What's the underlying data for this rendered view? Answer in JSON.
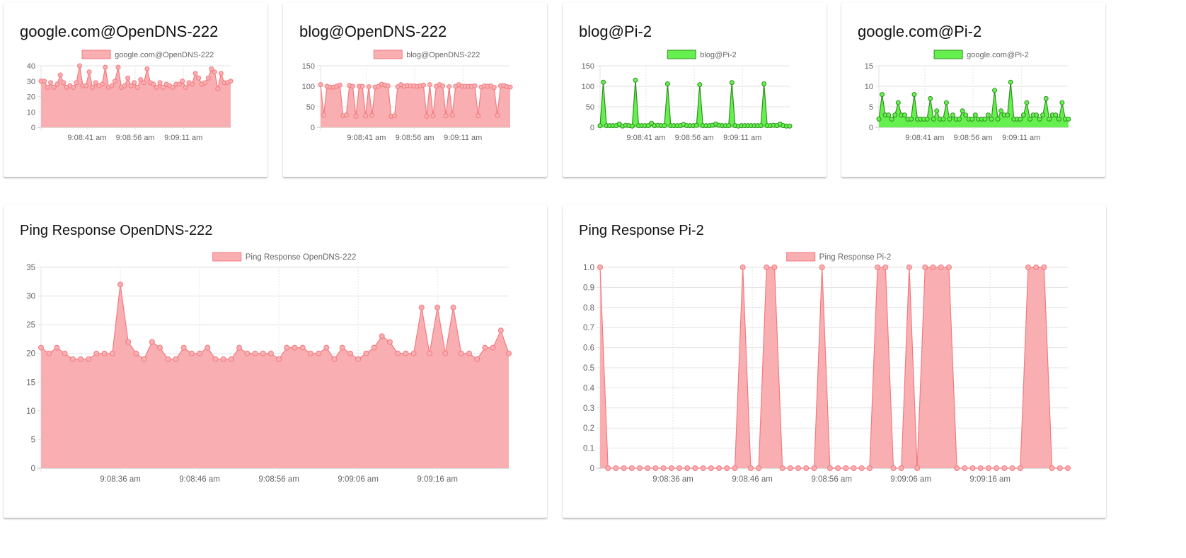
{
  "chart_data": [
    {
      "type": "area",
      "title": "google.com@OpenDNS-222",
      "series": [
        {
          "name": "google.com@OpenDNS-222",
          "values": [
            30,
            30,
            26,
            29,
            26,
            28,
            34,
            29,
            26,
            27,
            26,
            29,
            40,
            27,
            27,
            36,
            26,
            29,
            27,
            28,
            39,
            26,
            27,
            30,
            39,
            26,
            27,
            32,
            27,
            29,
            26,
            31,
            29,
            38,
            29,
            28,
            26,
            29,
            26,
            28,
            27,
            26,
            28,
            28,
            30,
            26,
            29,
            28,
            35,
            32,
            28,
            29,
            32,
            38,
            36,
            25,
            35,
            29,
            29,
            30
          ]
        }
      ],
      "x_ticks": [
        "9:08:41 am",
        "9:08:56 am",
        "9:09:11 am"
      ],
      "y_ticks": [
        0,
        10,
        20,
        30,
        40
      ],
      "ylim": [
        0,
        40
      ],
      "legend": "top",
      "grid": true,
      "colors": {
        "fill": "#f9afb1",
        "stroke": "#f27a80"
      }
    },
    {
      "type": "area",
      "title": "blog@OpenDNS-222",
      "series": [
        {
          "name": "blog@OpenDNS-222",
          "values": [
            104,
            30,
            100,
            98,
            98,
            100,
            103,
            28,
            30,
            102,
            100,
            27,
            100,
            100,
            28,
            99,
            29,
            98,
            100,
            105,
            103,
            101,
            27,
            28,
            99,
            104,
            100,
            102,
            101,
            101,
            100,
            101,
            103,
            27,
            104,
            28,
            100,
            104,
            101,
            28,
            99,
            30,
            100,
            104,
            100,
            100,
            100,
            100,
            101,
            28,
            98,
            101,
            100,
            101,
            97,
            29,
            101,
            102,
            99,
            98
          ]
        }
      ],
      "x_ticks": [
        "9:08:41 am",
        "9:08:56 am",
        "9:09:11 am"
      ],
      "y_ticks": [
        0,
        50,
        100,
        150
      ],
      "ylim": [
        0,
        150
      ],
      "legend": "top",
      "grid": true,
      "colors": {
        "fill": "#f9afb1",
        "stroke": "#f27a80"
      }
    },
    {
      "type": "area",
      "title": "blog@Pi-2",
      "series": [
        {
          "name": "blog@Pi-2",
          "values": [
            4,
            110,
            4,
            4,
            4,
            4,
            8,
            3,
            5,
            4,
            3,
            115,
            4,
            4,
            4,
            4,
            10,
            4,
            5,
            4,
            4,
            106,
            4,
            4,
            4,
            4,
            7,
            4,
            4,
            4,
            5,
            104,
            4,
            4,
            4,
            5,
            8,
            5,
            4,
            4,
            4,
            109,
            4,
            3,
            4,
            4,
            4,
            4,
            4,
            4,
            4,
            106,
            4,
            4,
            5,
            4,
            8,
            4,
            3,
            3
          ]
        }
      ],
      "x_ticks": [
        "9:08:41 am",
        "9:08:56 am",
        "9:09:11 am"
      ],
      "y_ticks": [
        0,
        50,
        100,
        150
      ],
      "ylim": [
        0,
        150
      ],
      "legend": "top",
      "grid": true,
      "colors": {
        "fill": "#66f04f",
        "stroke": "#2f8f1f"
      }
    },
    {
      "type": "area",
      "title": "google.com@Pi-2",
      "series": [
        {
          "name": "google.com@Pi-2",
          "values": [
            2,
            8,
            3,
            3,
            2,
            3,
            6,
            3,
            3,
            2,
            2,
            8,
            2,
            2,
            2,
            2,
            7,
            2,
            4,
            2,
            2,
            6,
            2,
            3,
            2,
            2,
            4,
            3,
            2,
            2,
            3,
            2,
            2,
            2,
            3,
            2,
            9,
            2,
            4,
            3,
            3,
            11,
            2,
            2,
            2,
            3,
            6,
            2,
            3,
            3,
            2,
            3,
            7,
            2,
            3,
            3,
            2,
            6,
            2,
            2
          ]
        }
      ],
      "x_ticks": [
        "9:08:41 am",
        "9:08:56 am",
        "9:09:11 am"
      ],
      "y_ticks": [
        0,
        5,
        10,
        15
      ],
      "ylim": [
        0,
        15
      ],
      "legend": "top",
      "grid": true,
      "colors": {
        "fill": "#66f04f",
        "stroke": "#2f8f1f"
      }
    },
    {
      "type": "area",
      "title": "Ping Response OpenDNS-222",
      "series": [
        {
          "name": "Ping Response OpenDNS-222",
          "values": [
            21,
            20,
            21,
            20,
            19,
            19,
            19,
            20,
            20,
            20,
            32,
            22,
            20,
            19,
            22,
            21,
            19,
            19,
            21,
            20,
            20,
            21,
            19,
            19,
            19,
            21,
            20,
            20,
            20,
            20,
            19,
            21,
            21,
            21,
            20,
            20,
            21,
            19,
            21,
            20,
            19,
            20,
            21,
            23,
            22,
            20,
            20,
            20,
            28,
            20,
            28,
            20,
            28,
            20,
            20,
            19,
            21,
            21,
            24,
            20
          ]
        }
      ],
      "x_ticks": [
        "9:08:36 am",
        "9:08:46 am",
        "9:08:56 am",
        "9:09:06 am",
        "9:09:16 am"
      ],
      "y_ticks": [
        0,
        5,
        10,
        15,
        20,
        25,
        30,
        35
      ],
      "ylim": [
        0,
        35
      ],
      "legend": "top",
      "grid": true,
      "colors": {
        "fill": "#f9afb1",
        "stroke": "#f27a80"
      }
    },
    {
      "type": "area",
      "title": "Ping Response Pi-2",
      "series": [
        {
          "name": "Ping Response Pi-2",
          "values": [
            1,
            0,
            0,
            0,
            0,
            0,
            0,
            0,
            0,
            0,
            0,
            0,
            0,
            0,
            0,
            0,
            0,
            0,
            1,
            0,
            0,
            1,
            1,
            0,
            0,
            0,
            0,
            0,
            1,
            0,
            0,
            0,
            0,
            0,
            0,
            1,
            1,
            0,
            0,
            1,
            0,
            1,
            1,
            1,
            1,
            0,
            0,
            0,
            0,
            0,
            0,
            0,
            0,
            0,
            1,
            1,
            1,
            0,
            0,
            0
          ]
        }
      ],
      "x_ticks": [
        "9:08:36 am",
        "9:08:46 am",
        "9:08:56 am",
        "9:09:06 am",
        "9:09:16 am"
      ],
      "y_ticks": [
        "0",
        "0.1",
        "0.2",
        "0.3",
        "0.4",
        "0.5",
        "0.6",
        "0.7",
        "0.8",
        "0.9",
        "1.0"
      ],
      "ylim": [
        0,
        1
      ],
      "legend": "top",
      "grid": true,
      "colors": {
        "fill": "#f9afb1",
        "stroke": "#f27a80"
      }
    }
  ]
}
